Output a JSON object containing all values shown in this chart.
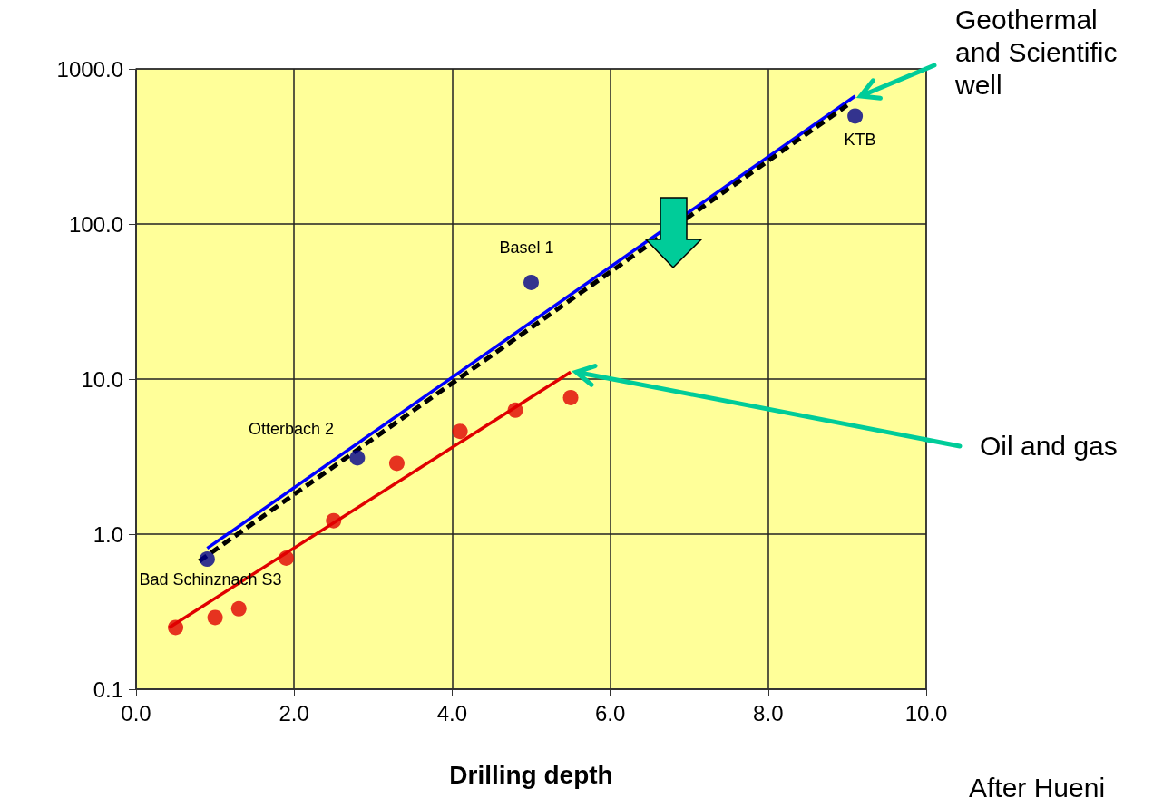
{
  "chart_data": {
    "type": "scatter",
    "xlabel": "Drilling depth",
    "log": "y",
    "grid": true,
    "marker": "circle",
    "xlim": [
      0,
      10
    ],
    "xticks": [
      {
        "value": 0,
        "label": "0.0"
      },
      {
        "value": 2,
        "label": "2.0"
      },
      {
        "value": 4,
        "label": "4.0"
      },
      {
        "value": 6,
        "label": "6.0"
      },
      {
        "value": 8,
        "label": "8.0"
      },
      {
        "value": 10,
        "label": "10.0"
      }
    ],
    "ylim": [
      0.1,
      1000
    ],
    "yticks": [
      0.1,
      {
        "value": 1,
        "label": "1.0"
      },
      {
        "value": 10,
        "label": "10.0"
      },
      {
        "value": 100,
        "label": "100.0"
      },
      {
        "value": 1000,
        "label": "1000.0"
      }
    ],
    "series": [
      {
        "type": "scatter",
        "color": "#00008b",
        "x": [
          0.9,
          2.8,
          5.0,
          9.1
        ],
        "values": [
          0.69,
          3.1,
          42,
          497
        ]
      },
      {
        "type": "scatter",
        "color": "#e00000",
        "x": [
          0.5,
          1.0,
          1.3,
          1.9,
          2.5,
          3.3,
          4.1,
          4.8,
          5.5
        ],
        "values": [
          0.25,
          0.29,
          0.33,
          0.7,
          1.22,
          2.86,
          4.6,
          6.3,
          7.6
        ]
      },
      {
        "type": "line",
        "color": "#0000ff",
        "x": [
          0.9,
          9.1
        ],
        "values": [
          0.81,
          668
        ],
        "marker": "none",
        "line_style": "solid"
      },
      {
        "type": "line",
        "color": "#000000",
        "x": [
          0.8,
          9.0
        ],
        "values": [
          0.67,
          583
        ],
        "marker": "none",
        "line_style": "dashed"
      },
      {
        "type": "line",
        "color": "#e00000",
        "x": [
          0.42,
          5.5
        ],
        "values": [
          0.25,
          11.1
        ],
        "marker": "none",
        "line_style": "solid"
      }
    ],
    "annotations": [
      {
        "text": "Bad Schinznach S3",
        "x": 0.9,
        "y": 0.69
      },
      {
        "text": "Otterbach 2",
        "x": 2.8,
        "y": 3.1
      },
      {
        "text": "Basel 1",
        "x": 5.0,
        "y": 42
      },
      {
        "text": "KTB",
        "x": 9.1,
        "y": 497
      },
      {
        "text": "Geothermal and Scientific well",
        "x": 9.1,
        "y": 668
      },
      {
        "text": "Oil and gas",
        "x": 5.5,
        "y": 11.1
      },
      "After Hueni"
    ]
  }
}
